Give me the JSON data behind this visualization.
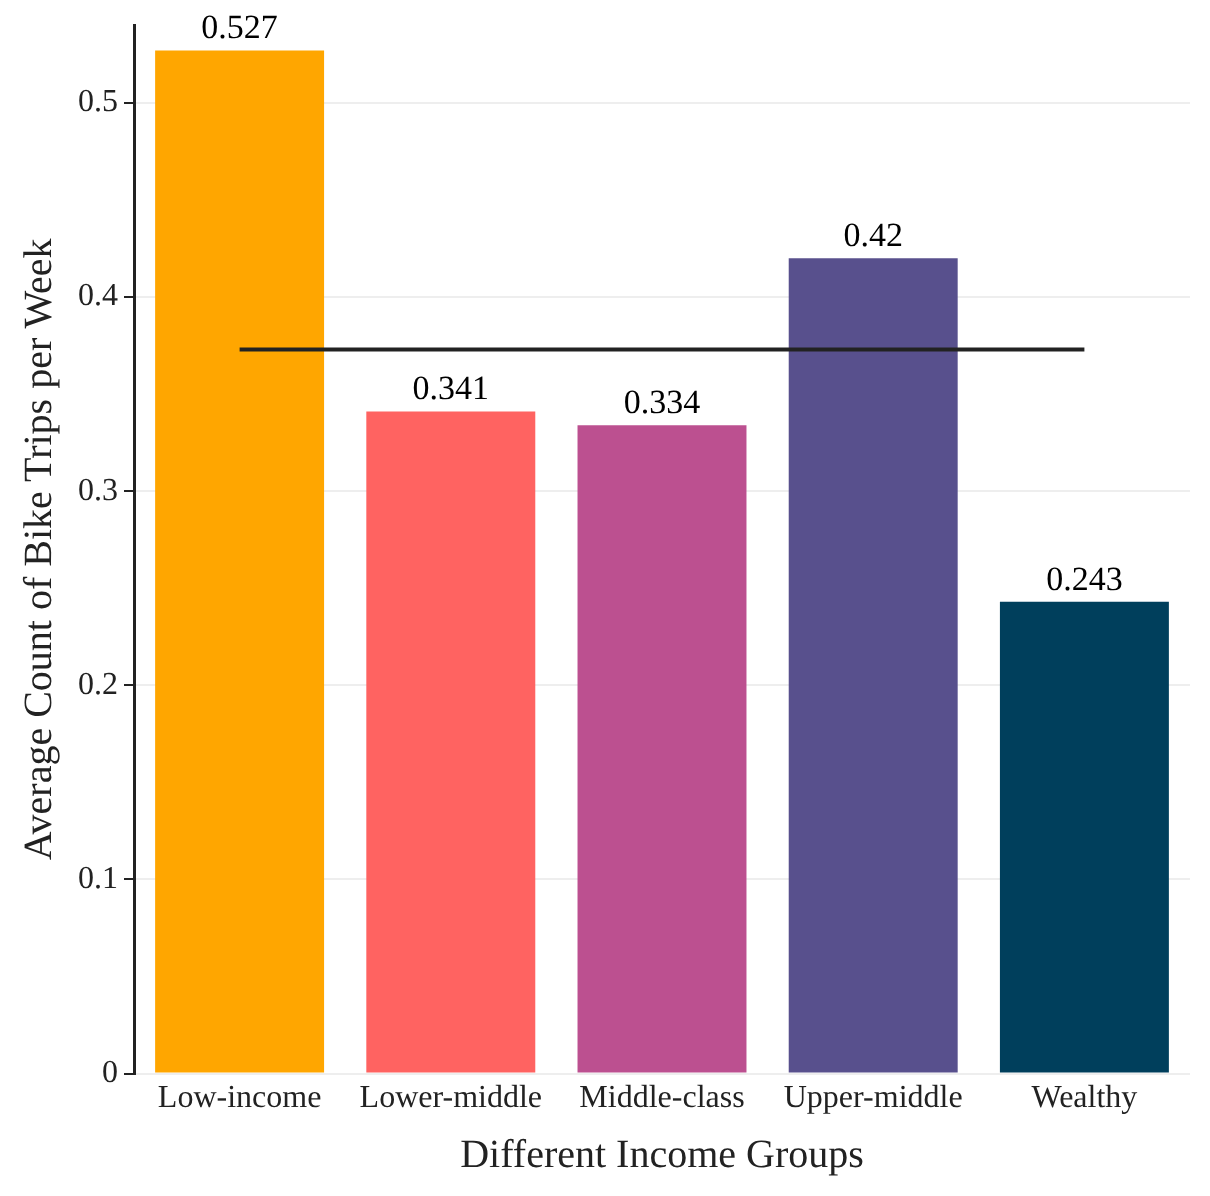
{
  "chart_data": {
    "type": "bar",
    "xlabel": "Different Income Groups",
    "ylabel": "Average Count of Bike Trips per Week",
    "categories": [
      "Low-income",
      "Lower-middle",
      "Middle-class",
      "Upper-middle",
      "Wealthy"
    ],
    "values": [
      0.527,
      0.341,
      0.334,
      0.42,
      0.243
    ],
    "colors": [
      "#ffa600",
      "#ff6361",
      "#bc5090",
      "#58508d",
      "#003f5c"
    ],
    "data_labels": true,
    "ylim": [
      0,
      0.54
    ],
    "yticks": [
      0,
      0.1,
      0.2,
      0.3,
      0.4,
      0.5
    ],
    "grid": "y",
    "ref_lines": [
      {
        "axis": "y",
        "value": 0.373,
        "color": "#222222"
      }
    ]
  }
}
